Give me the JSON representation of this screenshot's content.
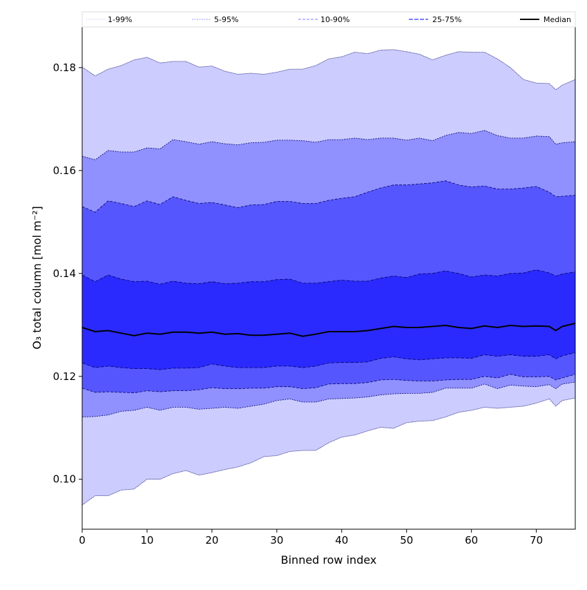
{
  "chart_data": {
    "type": "area",
    "title": "",
    "xlabel": "Binned row index",
    "ylabel": "O₃ total column [mol m⁻²]",
    "xlim": [
      0,
      76
    ],
    "ylim": [
      0.0903,
      0.1879
    ],
    "xticks": [
      0,
      10,
      20,
      30,
      40,
      50,
      60,
      70
    ],
    "yticks": [
      0.1,
      0.12,
      0.14,
      0.16,
      0.18
    ],
    "ytick_labels": [
      "0.10",
      "0.12",
      "0.14",
      "0.16",
      "0.18"
    ],
    "legend_position": "top",
    "legend": [
      {
        "label": "1-99%",
        "color": "#ccccff",
        "dash": "1,1"
      },
      {
        "label": "5-95%",
        "color": "#9a9aff",
        "dash": "2,1.5"
      },
      {
        "label": "10-90%",
        "color": "#7a7aff",
        "dash": "4,2"
      },
      {
        "label": "25-75%",
        "color": "#5050ff",
        "dash": "6,2"
      },
      {
        "label": "Median",
        "color": "#000000",
        "dash": ""
      }
    ],
    "band_colors": [
      "#ccccff",
      "#9090ff",
      "#5656ff",
      "#2a2aff"
    ],
    "x": [
      0,
      2,
      4,
      6,
      8,
      10,
      12,
      14,
      16,
      18,
      20,
      22,
      24,
      26,
      28,
      30,
      32,
      34,
      36,
      38,
      40,
      42,
      44,
      46,
      48,
      50,
      52,
      54,
      56,
      58,
      60,
      62,
      64,
      66,
      68,
      70,
      72,
      73,
      74,
      76
    ],
    "series": [
      {
        "name": "p1",
        "values": [
          0.095,
          0.0968,
          0.0968,
          0.0979,
          0.0981,
          0.1,
          0.1,
          0.1011,
          0.1017,
          0.1008,
          0.1013,
          0.1019,
          0.1024,
          0.1032,
          0.1044,
          0.1046,
          0.1054,
          0.1056,
          0.1056,
          0.1071,
          0.1082,
          0.1086,
          0.1094,
          0.1101,
          0.1099,
          0.111,
          0.1113,
          0.1114,
          0.1121,
          0.113,
          0.1134,
          0.114,
          0.1138,
          0.114,
          0.1142,
          0.1148,
          0.1156,
          0.1142,
          0.1153,
          0.1158
        ]
      },
      {
        "name": "p5",
        "values": [
          0.1121,
          0.1122,
          0.1125,
          0.1132,
          0.1134,
          0.114,
          0.1134,
          0.114,
          0.114,
          0.1136,
          0.1138,
          0.114,
          0.1138,
          0.1142,
          0.1146,
          0.1153,
          0.1156,
          0.115,
          0.115,
          0.1156,
          0.1157,
          0.1158,
          0.116,
          0.1164,
          0.1166,
          0.1167,
          0.1167,
          0.1169,
          0.1177,
          0.1177,
          0.1177,
          0.1185,
          0.1176,
          0.1183,
          0.1181,
          0.118,
          0.1184,
          0.1176,
          0.1185,
          0.1189
        ]
      },
      {
        "name": "p10",
        "values": [
          0.1177,
          0.1169,
          0.117,
          0.1169,
          0.1168,
          0.1172,
          0.117,
          0.1172,
          0.1172,
          0.1174,
          0.1178,
          0.1176,
          0.1176,
          0.1177,
          0.1177,
          0.118,
          0.118,
          0.1176,
          0.1178,
          0.1185,
          0.1186,
          0.1186,
          0.1188,
          0.1193,
          0.1194,
          0.1192,
          0.1191,
          0.1191,
          0.1193,
          0.1194,
          0.1194,
          0.12,
          0.1197,
          0.1204,
          0.1199,
          0.1199,
          0.12,
          0.1193,
          0.1197,
          0.1204
        ]
      },
      {
        "name": "p25",
        "values": [
          0.1226,
          0.1217,
          0.122,
          0.1217,
          0.1215,
          0.1215,
          0.1213,
          0.1216,
          0.1216,
          0.1217,
          0.1224,
          0.122,
          0.1217,
          0.1217,
          0.1217,
          0.122,
          0.122,
          0.1217,
          0.122,
          0.1226,
          0.1227,
          0.1227,
          0.1228,
          0.1235,
          0.1238,
          0.1234,
          0.1232,
          0.1234,
          0.1236,
          0.1236,
          0.1235,
          0.1242,
          0.1239,
          0.1242,
          0.1239,
          0.1239,
          0.1242,
          0.1234,
          0.124,
          0.1246
        ]
      },
      {
        "name": "Median",
        "values": [
          0.1295,
          0.1287,
          0.1289,
          0.1284,
          0.1279,
          0.1284,
          0.1282,
          0.1286,
          0.1286,
          0.1284,
          0.1286,
          0.1282,
          0.1283,
          0.128,
          0.128,
          0.1282,
          0.1284,
          0.1278,
          0.1282,
          0.1287,
          0.1287,
          0.1287,
          0.1289,
          0.1293,
          0.1297,
          0.1295,
          0.1295,
          0.1297,
          0.1299,
          0.1295,
          0.1293,
          0.1298,
          0.1295,
          0.1299,
          0.1297,
          0.1298,
          0.1297,
          0.1289,
          0.1297,
          0.1303
        ]
      },
      {
        "name": "p75",
        "values": [
          0.1397,
          0.1384,
          0.1397,
          0.1389,
          0.1384,
          0.1385,
          0.1379,
          0.1385,
          0.1381,
          0.138,
          0.1384,
          0.138,
          0.1381,
          0.1384,
          0.1384,
          0.1388,
          0.1389,
          0.1381,
          0.1381,
          0.1384,
          0.1387,
          0.1385,
          0.1385,
          0.1391,
          0.1395,
          0.1392,
          0.1399,
          0.14,
          0.1405,
          0.14,
          0.1393,
          0.1397,
          0.1395,
          0.14,
          0.1401,
          0.1407,
          0.1401,
          0.1395,
          0.1399,
          0.1403
        ]
      },
      {
        "name": "p90",
        "values": [
          0.153,
          0.1519,
          0.1541,
          0.1536,
          0.153,
          0.1541,
          0.1534,
          0.1549,
          0.1542,
          0.1536,
          0.1538,
          0.1533,
          0.1528,
          0.1533,
          0.1534,
          0.154,
          0.154,
          0.1536,
          0.1536,
          0.1542,
          0.1546,
          0.1549,
          0.1558,
          0.1566,
          0.1572,
          0.1572,
          0.1574,
          0.1576,
          0.158,
          0.1572,
          0.1568,
          0.157,
          0.1564,
          0.1564,
          0.1566,
          0.1569,
          0.1558,
          0.1549,
          0.155,
          0.1552
        ]
      },
      {
        "name": "p95",
        "values": [
          0.1628,
          0.1621,
          0.1639,
          0.1636,
          0.1636,
          0.1644,
          0.1642,
          0.166,
          0.1656,
          0.1651,
          0.1656,
          0.1652,
          0.165,
          0.1654,
          0.1655,
          0.1659,
          0.1659,
          0.1658,
          0.1655,
          0.166,
          0.166,
          0.1663,
          0.166,
          0.1663,
          0.1663,
          0.1659,
          0.1663,
          0.1658,
          0.1668,
          0.1674,
          0.1672,
          0.1678,
          0.1668,
          0.1663,
          0.1663,
          0.1667,
          0.1666,
          0.1651,
          0.1654,
          0.1656
        ]
      },
      {
        "name": "p99",
        "values": [
          0.1801,
          0.1784,
          0.1797,
          0.1804,
          0.1815,
          0.182,
          0.1809,
          0.1812,
          0.1812,
          0.1801,
          0.1803,
          0.1793,
          0.1787,
          0.1789,
          0.1787,
          0.1791,
          0.1797,
          0.1797,
          0.1804,
          0.1817,
          0.1821,
          0.183,
          0.1827,
          0.1834,
          0.1835,
          0.1831,
          0.1826,
          0.1815,
          0.1824,
          0.1831,
          0.183,
          0.183,
          0.1817,
          0.18,
          0.1777,
          0.177,
          0.1769,
          0.1757,
          0.1766,
          0.1777
        ]
      }
    ]
  }
}
